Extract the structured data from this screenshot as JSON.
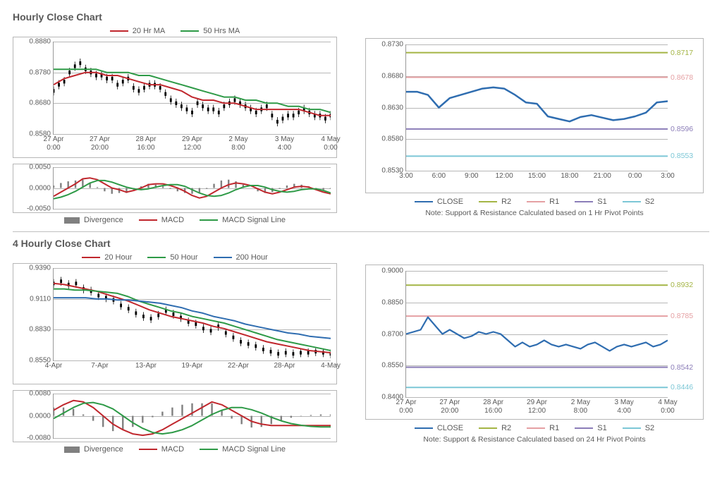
{
  "colors": {
    "red": "#c0272d",
    "green": "#2e9a47",
    "blue": "#2f6db0",
    "olive": "#a4b545",
    "pink": "#e5a0a3",
    "purple": "#8b7db8",
    "cyan": "#7cc7d6",
    "grey": "#808080",
    "gridline": "#b7b7b7",
    "text": "#595959"
  },
  "section1": {
    "title": "Hourly Close Chart",
    "price": {
      "legend": [
        {
          "color_key": "red",
          "label": "20 Hr MA"
        },
        {
          "color_key": "green",
          "label": "50 Hrs MA"
        }
      ],
      "ymin": 0.858,
      "ymax": 0.888,
      "ytick_step": 0.01,
      "yfmt": 4,
      "xlabels": [
        "27 Apr\n0:00",
        "27 Apr\n20:00",
        "28 Apr\n16:00",
        "29 Apr\n12:00",
        "2 May\n8:00",
        "3 May\n4:00",
        "4 May\n0:00"
      ],
      "lines": {
        "ma20": {
          "color_key": "red",
          "width": 2,
          "y": [
            0.874,
            0.876,
            0.877,
            0.878,
            0.878,
            0.877,
            0.877,
            0.876,
            0.875,
            0.874,
            0.874,
            0.873,
            0.872,
            0.87,
            0.869,
            0.869,
            0.868,
            0.868,
            0.867,
            0.866,
            0.866,
            0.866,
            0.866,
            0.866,
            0.865,
            0.864,
            0.864
          ]
        },
        "ma50": {
          "color_key": "green",
          "width": 2,
          "y": [
            0.879,
            0.879,
            0.879,
            0.879,
            0.879,
            0.878,
            0.878,
            0.878,
            0.877,
            0.877,
            0.876,
            0.875,
            0.874,
            0.873,
            0.872,
            0.871,
            0.87,
            0.87,
            0.869,
            0.869,
            0.868,
            0.868,
            0.867,
            0.867,
            0.866,
            0.866,
            0.865
          ]
        }
      },
      "candles": [
        0.872,
        0.874,
        0.875,
        0.878,
        0.88,
        0.881,
        0.879,
        0.878,
        0.877,
        0.877,
        0.876,
        0.876,
        0.874,
        0.875,
        0.876,
        0.873,
        0.872,
        0.873,
        0.874,
        0.874,
        0.873,
        0.871,
        0.869,
        0.868,
        0.867,
        0.866,
        0.865,
        0.868,
        0.867,
        0.866,
        0.866,
        0.865,
        0.867,
        0.868,
        0.869,
        0.868,
        0.867,
        0.866,
        0.865,
        0.866,
        0.867,
        0.864,
        0.862,
        0.863,
        0.864,
        0.864,
        0.865,
        0.866,
        0.865,
        0.864,
        0.864,
        0.863,
        0.864
      ],
      "candle_amp": 0.0015
    },
    "macd": {
      "legend": [
        {
          "type": "bar",
          "label": "Divergence"
        },
        {
          "type": "line",
          "color_key": "red",
          "label": "MACD"
        },
        {
          "type": "line",
          "color_key": "green",
          "label": "MACD Signal Line"
        }
      ],
      "ymin": -0.005,
      "ymax": 0.005,
      "ytick_step": 0.005,
      "yfmt": 4,
      "lines": {
        "macd": {
          "color_key": "red",
          "width": 2,
          "y": [
            -0.002,
            -0.001,
            0.0,
            0.001,
            0.0022,
            0.0024,
            0.002,
            0.001,
            0.0,
            -0.0004,
            -0.001,
            -0.0006,
            0.0,
            0.0008,
            0.001,
            0.001,
            0.0006,
            0.0,
            -0.0008,
            -0.0018,
            -0.0024,
            -0.002,
            -0.001,
            0.0,
            0.0008,
            0.0012,
            0.001,
            0.0006,
            -0.0002,
            -0.001,
            -0.0014,
            -0.001,
            -0.0004,
            0.0002,
            0.0004,
            0.0002,
            -0.0004,
            -0.001,
            -0.0014
          ]
        },
        "signal": {
          "color_key": "green",
          "width": 2,
          "y": [
            -0.0026,
            -0.0022,
            -0.0016,
            -0.0008,
            0.0002,
            0.0012,
            0.0018,
            0.0018,
            0.0014,
            0.0008,
            0.0002,
            -0.0002,
            -0.0004,
            -0.0002,
            0.0002,
            0.0006,
            0.0008,
            0.0008,
            0.0004,
            -0.0004,
            -0.0012,
            -0.0018,
            -0.002,
            -0.0018,
            -0.0012,
            -0.0004,
            0.0002,
            0.0006,
            0.0006,
            0.0002,
            -0.0004,
            -0.0008,
            -0.001,
            -0.0008,
            -0.0004,
            -0.0002,
            -0.0002,
            -0.0006,
            -0.0012
          ]
        }
      }
    },
    "sr": {
      "legend": [
        {
          "color_key": "blue",
          "label": "CLOSE"
        },
        {
          "color_key": "olive",
          "label": "R2"
        },
        {
          "color_key": "pink",
          "label": "R1"
        },
        {
          "color_key": "purple",
          "label": "S1"
        },
        {
          "color_key": "cyan",
          "label": "S2"
        }
      ],
      "ymin": 0.853,
      "ymax": 0.873,
      "ytick_step": 0.005,
      "yfmt": 4,
      "xlabels": [
        "3:00",
        "6:00",
        "9:00",
        "12:00",
        "15:00",
        "18:00",
        "21:00",
        "0:00",
        "3:00"
      ],
      "levels": {
        "R2": 0.8717,
        "R1": 0.8678,
        "S1": 0.8596,
        "S2": 0.8553
      },
      "close": {
        "color_key": "blue",
        "width": 2.5,
        "y": [
          0.8655,
          0.8655,
          0.865,
          0.863,
          0.8645,
          0.865,
          0.8655,
          0.866,
          0.8662,
          0.866,
          0.865,
          0.8638,
          0.8636,
          0.8616,
          0.8612,
          0.8608,
          0.8615,
          0.8618,
          0.8614,
          0.861,
          0.8612,
          0.8616,
          0.8622,
          0.8638,
          0.864
        ]
      },
      "note": "Note: Support & Resistance Calculated based on 1 Hr Pivot Points"
    }
  },
  "section2": {
    "title": "4 Hourly Close Chart",
    "price": {
      "legend": [
        {
          "color_key": "red",
          "label": "20 Hour"
        },
        {
          "color_key": "green",
          "label": "50 Hour"
        },
        {
          "color_key": "blue",
          "label": "200 Hour"
        }
      ],
      "ymin": 0.855,
      "ymax": 0.939,
      "yticks": [
        0.855,
        0.883,
        0.911,
        0.939
      ],
      "yfmt": 4,
      "xlabels": [
        "4-Apr",
        "7-Apr",
        "13-Apr",
        "19-Apr",
        "22-Apr",
        "28-Apr",
        "4-May"
      ],
      "lines": {
        "ma20": {
          "color_key": "red",
          "width": 2,
          "y": [
            0.925,
            0.924,
            0.922,
            0.92,
            0.918,
            0.915,
            0.912,
            0.909,
            0.905,
            0.901,
            0.898,
            0.895,
            0.893,
            0.891,
            0.889,
            0.886,
            0.884,
            0.881,
            0.878,
            0.875,
            0.872,
            0.87,
            0.868,
            0.866,
            0.864,
            0.863,
            0.862
          ]
        },
        "ma50": {
          "color_key": "green",
          "width": 2,
          "y": [
            0.92,
            0.92,
            0.919,
            0.919,
            0.918,
            0.917,
            0.916,
            0.913,
            0.909,
            0.906,
            0.903,
            0.9,
            0.898,
            0.895,
            0.893,
            0.891,
            0.889,
            0.886,
            0.883,
            0.88,
            0.877,
            0.874,
            0.872,
            0.87,
            0.868,
            0.866,
            0.864
          ]
        },
        "ma200": {
          "color_key": "blue",
          "width": 2,
          "y": [
            0.912,
            0.912,
            0.912,
            0.912,
            0.911,
            0.911,
            0.91,
            0.91,
            0.909,
            0.908,
            0.907,
            0.905,
            0.903,
            0.9,
            0.898,
            0.895,
            0.893,
            0.891,
            0.888,
            0.886,
            0.884,
            0.882,
            0.88,
            0.879,
            0.877,
            0.876,
            0.875
          ]
        }
      },
      "candles": [
        0.925,
        0.927,
        0.924,
        0.925,
        0.92,
        0.918,
        0.914,
        0.912,
        0.91,
        0.905,
        0.902,
        0.898,
        0.895,
        0.893,
        0.896,
        0.9,
        0.897,
        0.894,
        0.89,
        0.888,
        0.884,
        0.882,
        0.886,
        0.88,
        0.876,
        0.872,
        0.87,
        0.868,
        0.865,
        0.863,
        0.861,
        0.862,
        0.861,
        0.862,
        0.862,
        0.863,
        0.862,
        0.861
      ],
      "candle_amp": 0.004
    },
    "macd": {
      "legend": [
        {
          "type": "bar",
          "label": "Divergence"
        },
        {
          "type": "line",
          "color_key": "red",
          "label": "MACD"
        },
        {
          "type": "line",
          "color_key": "green",
          "label": "MACD Signal Line"
        }
      ],
      "ymin": -0.008,
      "ymax": 0.008,
      "ytick_step": 0.008,
      "yfmt": 4,
      "lines": {
        "macd": {
          "color_key": "red",
          "width": 2,
          "y": [
            0.002,
            0.004,
            0.0055,
            0.005,
            0.003,
            0.0,
            -0.003,
            -0.005,
            -0.0065,
            -0.007,
            -0.0065,
            -0.005,
            -0.003,
            -0.001,
            0.001,
            0.003,
            0.005,
            0.004,
            0.002,
            0.0,
            -0.002,
            -0.003,
            -0.0035,
            -0.0035,
            -0.0035,
            -0.0035,
            -0.0035,
            -0.0035,
            -0.0035
          ]
        },
        "signal": {
          "color_key": "green",
          "width": 2,
          "y": [
            -0.001,
            0.001,
            0.003,
            0.0045,
            0.0048,
            0.004,
            0.0025,
            0.0,
            -0.0025,
            -0.0045,
            -0.006,
            -0.0065,
            -0.006,
            -0.005,
            -0.0035,
            -0.0015,
            0.0005,
            0.002,
            0.003,
            0.003,
            0.0022,
            0.001,
            -0.0005,
            -0.0018,
            -0.0028,
            -0.0034,
            -0.0038,
            -0.004,
            -0.004
          ]
        }
      }
    },
    "sr": {
      "legend": [
        {
          "color_key": "blue",
          "label": "CLOSE"
        },
        {
          "color_key": "olive",
          "label": "R2"
        },
        {
          "color_key": "pink",
          "label": "R1"
        },
        {
          "color_key": "purple",
          "label": "S1"
        },
        {
          "color_key": "cyan",
          "label": "S2"
        }
      ],
      "ymin": 0.84,
      "ymax": 0.9,
      "ytick_step": 0.015,
      "yfmt": 4,
      "xlabels": [
        "27 Apr\n0:00",
        "27 Apr\n20:00",
        "28 Apr\n16:00",
        "29 Apr\n12:00",
        "2 May\n8:00",
        "3 May\n4:00",
        "4 May\n0:00"
      ],
      "levels": {
        "R2": 0.8932,
        "R1": 0.8785,
        "S1": 0.8542,
        "S2": 0.8446
      },
      "close": {
        "color_key": "blue",
        "width": 2.2,
        "y": [
          0.87,
          0.871,
          0.872,
          0.878,
          0.874,
          0.87,
          0.872,
          0.87,
          0.868,
          0.869,
          0.871,
          0.87,
          0.871,
          0.87,
          0.867,
          0.864,
          0.866,
          0.864,
          0.865,
          0.867,
          0.865,
          0.864,
          0.865,
          0.864,
          0.863,
          0.865,
          0.866,
          0.864,
          0.862,
          0.864,
          0.865,
          0.864,
          0.865,
          0.866,
          0.864,
          0.865,
          0.867
        ]
      },
      "note": "Note: Support & Resistance Calculated based on 24 Hr Pivot Points"
    }
  }
}
